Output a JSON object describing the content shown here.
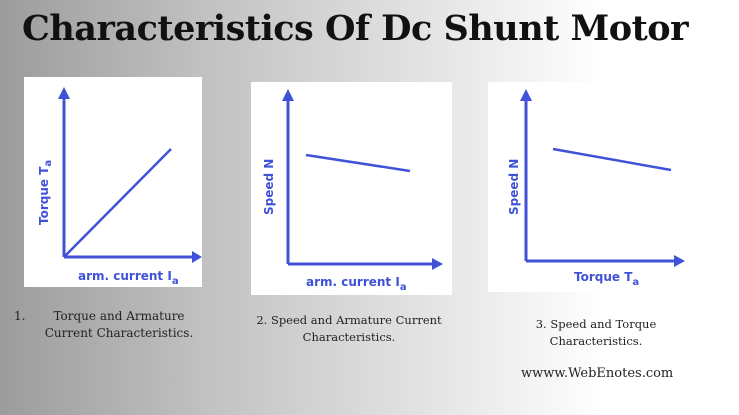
{
  "title": "Characteristics Of Dc Shunt Motor",
  "colors": {
    "curve": "#3f52d8",
    "title": "#111111"
  },
  "graphs": [
    {
      "y_label": "Torque T",
      "y_sub": "a",
      "x_label": "arm. current I",
      "x_sub": "a",
      "caption_number": "1.",
      "caption_line1": "Torque and Armature",
      "caption_line2": "Current Characteristics."
    },
    {
      "y_label": "Speed N",
      "x_label": "arm. current I",
      "x_sub": "a",
      "caption_line1": "2. Speed and Armature Current",
      "caption_line2": "Characteristics."
    },
    {
      "y_label": "Speed N",
      "x_label": "Torque T",
      "x_sub": "a",
      "caption_line1": "3. Speed and Torque",
      "caption_line2": "Characteristics."
    }
  ],
  "website": "wwww.WebEnotes.com"
}
